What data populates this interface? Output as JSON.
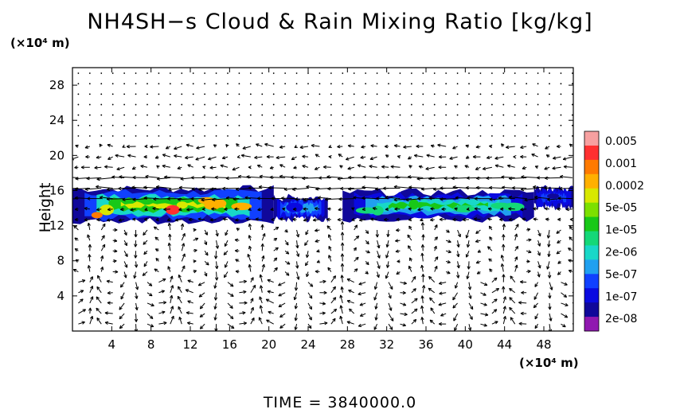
{
  "title": "NH4SH−s Cloud & Rain Mixing Ratio [kg/kg]",
  "y_unit": "(×10⁴ m)",
  "x_unit": "(×10⁴ m)",
  "ylabel": "Height",
  "time_label": "TIME  =  3840000.0",
  "chart_data": {
    "type": "heatmap",
    "title": "NH4SH−s Cloud & Rain Mixing Ratio [kg/kg]",
    "xlabel": "",
    "ylabel": "Height",
    "xlim": [
      0,
      51
    ],
    "ylim": [
      0,
      30
    ],
    "x_ticks": [
      4,
      8,
      12,
      16,
      20,
      24,
      28,
      32,
      36,
      40,
      44,
      48
    ],
    "y_ticks": [
      4,
      8,
      12,
      16,
      20,
      24,
      28
    ],
    "colorbar": {
      "labels": [
        "0.005",
        "0.001",
        "0.0002",
        "5e-05",
        "1e-05",
        "2e-06",
        "5e-07",
        "1e-07",
        "2e-08"
      ],
      "colors": [
        "#f7a0a0",
        "#ff3030",
        "#ff7a00",
        "#ffb000",
        "#d8e800",
        "#7ce000",
        "#18c818",
        "#14d878",
        "#18d8c8",
        "#20a0f0",
        "#1040ff",
        "#0a0ae0",
        "#10089a",
        "#9018b0"
      ]
    },
    "cloud_regions": [
      {
        "x_start": 0,
        "x_end": 20.5,
        "y_bottom": 12.5,
        "y_top": 16.2,
        "max_level": "0.001"
      },
      {
        "x_start": 20.5,
        "x_end": 26,
        "y_bottom": 12.8,
        "y_top": 15.2,
        "max_level": "2e-06"
      },
      {
        "x_start": 27.5,
        "x_end": 47,
        "y_bottom": 12.8,
        "y_top": 15.8,
        "max_level": "5e-05"
      },
      {
        "x_start": 47,
        "x_end": 51,
        "y_bottom": 14.2,
        "y_top": 16.2,
        "max_level": "5e-07"
      }
    ],
    "wind_field": "vector arrows overlaid across full domain; strong leftward flow near heights 15-17, circulation cells below 12"
  }
}
